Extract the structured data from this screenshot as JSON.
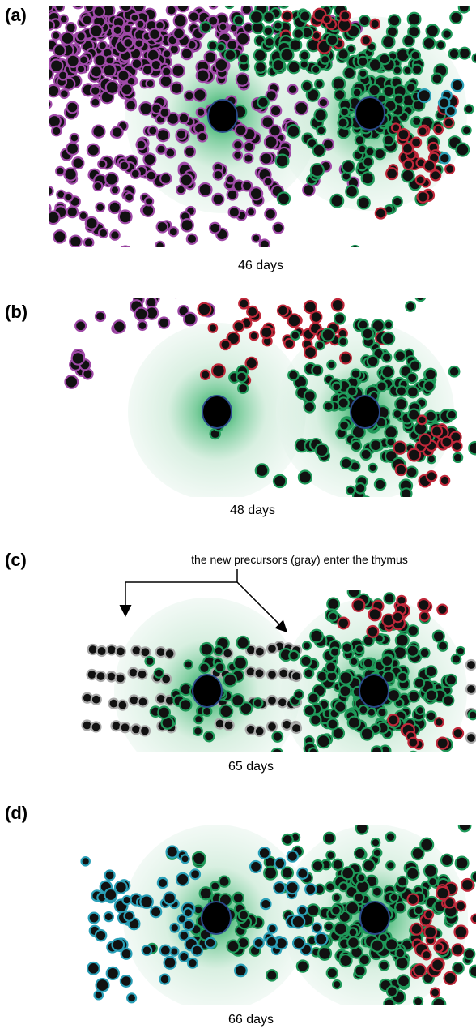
{
  "panels": [
    {
      "label": "(a)",
      "caption": "46 days"
    },
    {
      "label": "(b)",
      "caption": "48 days"
    },
    {
      "label": "(c)",
      "caption": "65 days",
      "annotation": "the new precursors (gray) enter the thymus"
    },
    {
      "label": "(d)",
      "caption": "66 days"
    }
  ]
}
